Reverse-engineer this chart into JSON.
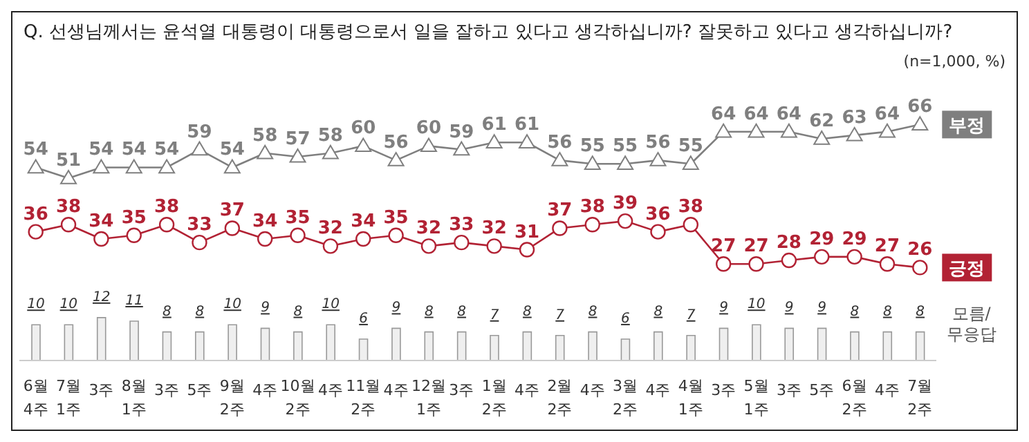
{
  "chart_data": {
    "type": "line",
    "title": "Q. 선생님께서는 윤석열 대통령이 대통령으로서 일을 잘하고 있다고 생각하십니까? 잘못하고 있다고 생각하십니까?",
    "annotations": [
      "(n=1,000, %)"
    ],
    "categories": [
      "6월 4주",
      "7월 1주",
      "3주",
      "8월 1주",
      "3주",
      "5주",
      "9월 2주",
      "4주",
      "10월 2주",
      "4주",
      "11월 2주",
      "4주",
      "12월 1주",
      "3주",
      "1월 2주",
      "4주",
      "2월 2주",
      "4주",
      "3월 2주",
      "4주",
      "4월 1주",
      "3주",
      "5월 1주",
      "3주",
      "5주",
      "6월 2주",
      "4주",
      "7월 2주"
    ],
    "series": [
      {
        "name": "부정",
        "color": "#7f7f7f",
        "marker": "triangle",
        "values": [
          54,
          51,
          54,
          54,
          54,
          59,
          54,
          58,
          57,
          58,
          60,
          56,
          60,
          59,
          61,
          61,
          56,
          55,
          55,
          56,
          55,
          64,
          64,
          64,
          62,
          63,
          64,
          66
        ]
      },
      {
        "name": "긍정",
        "color": "#b22234",
        "marker": "circle",
        "values": [
          36,
          38,
          34,
          35,
          38,
          33,
          37,
          34,
          35,
          32,
          34,
          35,
          32,
          33,
          32,
          31,
          37,
          38,
          39,
          36,
          38,
          27,
          27,
          28,
          29,
          29,
          27,
          26
        ]
      },
      {
        "name": "모름/무응답",
        "type": "bar",
        "color": "#efefef",
        "values": [
          10,
          10,
          12,
          11,
          8,
          8,
          10,
          9,
          8,
          10,
          6,
          9,
          8,
          8,
          7,
          8,
          7,
          8,
          6,
          8,
          7,
          9,
          10,
          9,
          9,
          8,
          8,
          8
        ]
      }
    ],
    "data_labels": true
  }
}
